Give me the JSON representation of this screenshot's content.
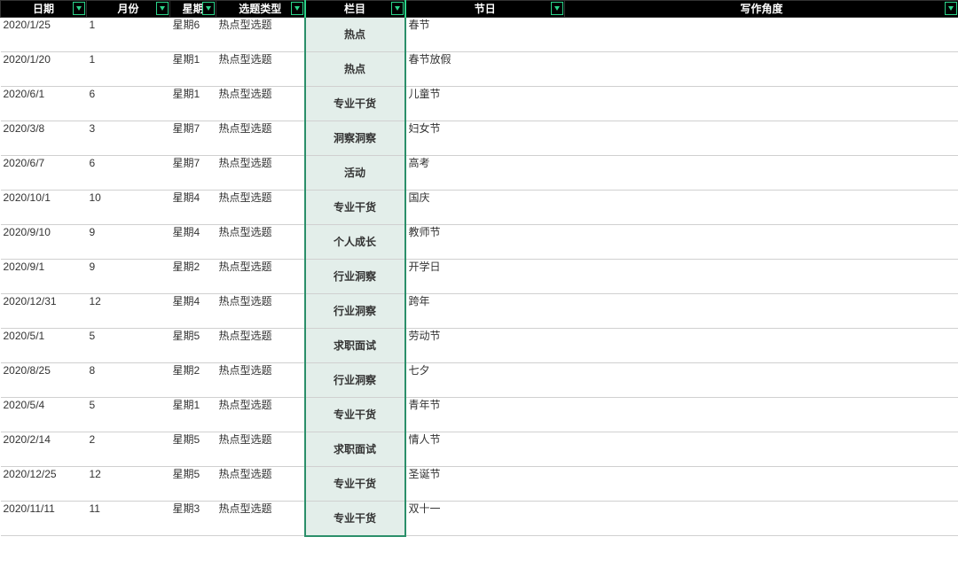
{
  "headers": [
    "日期",
    "月份",
    "星期",
    "选题类型",
    "栏目",
    "节日",
    "写作角度"
  ],
  "column_keys": [
    "date",
    "month",
    "week",
    "type",
    "cat",
    "fest",
    "angle"
  ],
  "column_classes": [
    "c-date",
    "c-month",
    "c-week",
    "c-type",
    "c-cat",
    "c-fest",
    "c-angle"
  ],
  "highlight_col": "cat",
  "rows": [
    {
      "date": "2020/1/25",
      "month": "1",
      "week": "星期6",
      "type": "热点型选题",
      "cat": "热点",
      "fest": "春节",
      "angle": ""
    },
    {
      "date": "2020/1/20",
      "month": "1",
      "week": "星期1",
      "type": "热点型选题",
      "cat": "热点",
      "fest": "春节放假",
      "angle": ""
    },
    {
      "date": "2020/6/1",
      "month": "6",
      "week": "星期1",
      "type": "热点型选题",
      "cat": "专业干货",
      "fest": "儿童节",
      "angle": ""
    },
    {
      "date": "2020/3/8",
      "month": "3",
      "week": "星期7",
      "type": "热点型选题",
      "cat": "洞察洞察",
      "fest": "妇女节",
      "angle": ""
    },
    {
      "date": "2020/6/7",
      "month": "6",
      "week": "星期7",
      "type": "热点型选题",
      "cat": "活动",
      "fest": "高考",
      "angle": ""
    },
    {
      "date": "2020/10/1",
      "month": "10",
      "week": "星期4",
      "type": "热点型选题",
      "cat": "专业干货",
      "fest": "国庆",
      "angle": ""
    },
    {
      "date": "2020/9/10",
      "month": "9",
      "week": "星期4",
      "type": "热点型选题",
      "cat": "个人成长",
      "fest": "教师节",
      "angle": ""
    },
    {
      "date": "2020/9/1",
      "month": "9",
      "week": "星期2",
      "type": "热点型选题",
      "cat": "行业洞察",
      "fest": "开学日",
      "angle": ""
    },
    {
      "date": "2020/12/31",
      "month": "12",
      "week": "星期4",
      "type": "热点型选题",
      "cat": "行业洞察",
      "fest": "跨年",
      "angle": ""
    },
    {
      "date": "2020/5/1",
      "month": "5",
      "week": "星期5",
      "type": "热点型选题",
      "cat": "求职面试",
      "fest": "劳动节",
      "angle": ""
    },
    {
      "date": "2020/8/25",
      "month": "8",
      "week": "星期2",
      "type": "热点型选题",
      "cat": "行业洞察",
      "fest": "七夕",
      "angle": ""
    },
    {
      "date": "2020/5/4",
      "month": "5",
      "week": "星期1",
      "type": "热点型选题",
      "cat": "专业干货",
      "fest": "青年节",
      "angle": ""
    },
    {
      "date": "2020/2/14",
      "month": "2",
      "week": "星期5",
      "type": "热点型选题",
      "cat": "求职面试",
      "fest": "情人节",
      "angle": ""
    },
    {
      "date": "2020/12/25",
      "month": "12",
      "week": "星期5",
      "type": "热点型选题",
      "cat": "专业干货",
      "fest": "圣诞节",
      "angle": ""
    },
    {
      "date": "2020/11/11",
      "month": "11",
      "week": "星期3",
      "type": "热点型选题",
      "cat": "专业干货",
      "fest": "双十一",
      "angle": ""
    }
  ],
  "colors": {
    "header_bg": "#000000",
    "header_fg": "#ffffff",
    "accent": "#2bd48a",
    "highlight_bg": "#e3eeea",
    "highlight_border": "#2b8f6a",
    "grid": "#d0d0d0"
  }
}
